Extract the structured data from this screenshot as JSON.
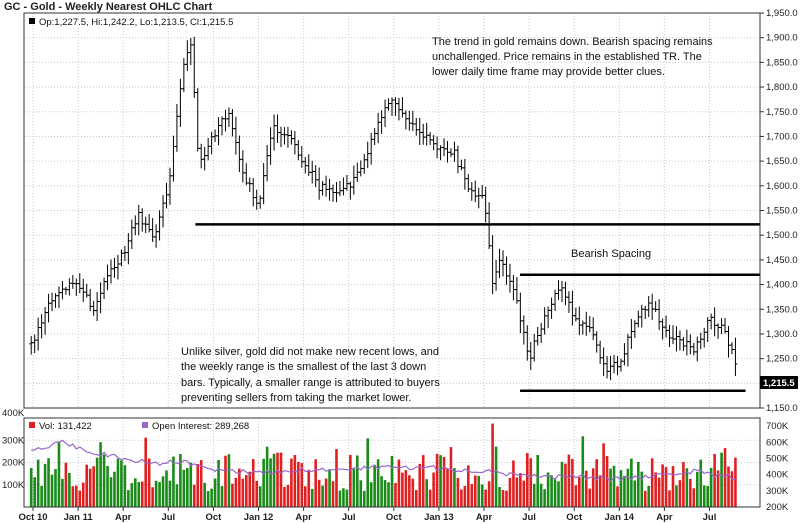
{
  "chart_data": {
    "type": "ohlc",
    "title": "GC - Gold - Weekly Nearest OHLC Chart",
    "price_panel": {
      "legend": "Op:1,227.5, Hi:1,242.2, Lo:1,213.5, Cl:1,215.5",
      "last_price_label": "1,215.5",
      "last_price": 1215.5,
      "ylim": [
        1150,
        1950
      ],
      "y_ticks": [
        1150,
        1200,
        1250,
        1300,
        1350,
        1400,
        1450,
        1500,
        1550,
        1600,
        1650,
        1700,
        1750,
        1800,
        1850,
        1900,
        1950
      ],
      "y_tick_labels": [
        "1,150.0",
        "1,200.0",
        "1,250.0",
        "1,300.0",
        "1,350.0",
        "1,400.0",
        "1,450.0",
        "1,500.0",
        "1,550.0",
        "1,600.0",
        "1,650.0",
        "1,700.0",
        "1,750.0",
        "1,800.0",
        "1,850.0",
        "1,900.0",
        "1,950.0"
      ],
      "price_path": [
        [
          2010.75,
          1280
        ],
        [
          2010.83,
          1355
        ],
        [
          2010.92,
          1390
        ],
        [
          2011.0,
          1400
        ],
        [
          2011.08,
          1350
        ],
        [
          2011.17,
          1420
        ],
        [
          2011.25,
          1460
        ],
        [
          2011.33,
          1540
        ],
        [
          2011.42,
          1500
        ],
        [
          2011.5,
          1590
        ],
        [
          2011.58,
          1840
        ],
        [
          2011.62,
          1900
        ],
        [
          2011.67,
          1650
        ],
        [
          2011.75,
          1700
        ],
        [
          2011.83,
          1750
        ],
        [
          2011.92,
          1620
        ],
        [
          2012.0,
          1560
        ],
        [
          2012.08,
          1720
        ],
        [
          2012.17,
          1700
        ],
        [
          2012.25,
          1650
        ],
        [
          2012.33,
          1600
        ],
        [
          2012.42,
          1580
        ],
        [
          2012.5,
          1600
        ],
        [
          2012.58,
          1640
        ],
        [
          2012.67,
          1740
        ],
        [
          2012.75,
          1780
        ],
        [
          2012.83,
          1730
        ],
        [
          2012.92,
          1700
        ],
        [
          2013.0,
          1670
        ],
        [
          2013.08,
          1670
        ],
        [
          2013.17,
          1590
        ],
        [
          2013.25,
          1570
        ],
        [
          2013.3,
          1400
        ],
        [
          2013.33,
          1460
        ],
        [
          2013.42,
          1380
        ],
        [
          2013.5,
          1250
        ],
        [
          2013.58,
          1330
        ],
        [
          2013.67,
          1400
        ],
        [
          2013.75,
          1330
        ],
        [
          2013.83,
          1320
        ],
        [
          2013.92,
          1230
        ],
        [
          2014.0,
          1240
        ],
        [
          2014.08,
          1320
        ],
        [
          2014.17,
          1370
        ],
        [
          2014.25,
          1300
        ],
        [
          2014.33,
          1290
        ],
        [
          2014.42,
          1270
        ],
        [
          2014.5,
          1330
        ],
        [
          2014.58,
          1310
        ],
        [
          2014.67,
          1215
        ]
      ],
      "support_level": 1522,
      "spacing_upper": 1420,
      "spacing_lower": 1185
    },
    "volume_panel": {
      "vol_legend": "Vol: 131,422",
      "oi_legend": "Open Interest: 289,268",
      "vol_last": 131422,
      "oi_last": 289268,
      "left_axis_label": "400K",
      "vol_ylim": [
        0,
        400000
      ],
      "vol_ticks": [
        100000,
        200000,
        300000
      ],
      "vol_tick_labels": [
        "100K",
        "200K",
        "300K"
      ],
      "oi_ylim": [
        200000,
        750000
      ],
      "oi_ticks": [
        200000,
        300000,
        400000,
        500000,
        600000,
        700000
      ],
      "oi_tick_labels": [
        "200K",
        "300K",
        "400K",
        "500K",
        "600K",
        "700K"
      ],
      "oi_path": [
        [
          2010.75,
          560000
        ],
        [
          2010.92,
          600000
        ],
        [
          2011.08,
          540000
        ],
        [
          2011.25,
          500000
        ],
        [
          2011.42,
          470000
        ],
        [
          2011.58,
          480000
        ],
        [
          2011.75,
          430000
        ],
        [
          2012.0,
          410000
        ],
        [
          2012.25,
          430000
        ],
        [
          2012.5,
          440000
        ],
        [
          2012.75,
          450000
        ],
        [
          2013.0,
          440000
        ],
        [
          2013.25,
          420000
        ],
        [
          2013.42,
          400000
        ],
        [
          2013.58,
          380000
        ],
        [
          2013.75,
          390000
        ],
        [
          2014.0,
          370000
        ],
        [
          2014.25,
          400000
        ],
        [
          2014.42,
          420000
        ],
        [
          2014.58,
          390000
        ],
        [
          2014.67,
          380000
        ]
      ]
    },
    "x_axis": {
      "xlim": [
        2010.7,
        2014.78
      ],
      "ticks": [
        {
          "label": "Oct 10",
          "x": 2010.75
        },
        {
          "label": "Jan 11",
          "x": 2011.0
        },
        {
          "label": "Apr",
          "x": 2011.25
        },
        {
          "label": "Jul",
          "x": 2011.5
        },
        {
          "label": "Oct",
          "x": 2011.75
        },
        {
          "label": "Jan 12",
          "x": 2012.0
        },
        {
          "label": "Apr",
          "x": 2012.25
        },
        {
          "label": "Jul",
          "x": 2012.5
        },
        {
          "label": "Oct",
          "x": 2012.75
        },
        {
          "label": "Jan 13",
          "x": 2013.0
        },
        {
          "label": "Apr",
          "x": 2013.25
        },
        {
          "label": "Jul",
          "x": 2013.5
        },
        {
          "label": "Oct",
          "x": 2013.75
        },
        {
          "label": "Jan 14",
          "x": 2014.0
        },
        {
          "label": "Apr",
          "x": 2014.25
        },
        {
          "label": "Jul",
          "x": 2014.5
        }
      ]
    },
    "annotations": {
      "top_note": [
        "The trend in gold remains down.  Bearish spacing remains",
        "unchallenged.  Price remains in the established TR.  The",
        "lower daily time frame may provide better clues."
      ],
      "spacing_label": "Bearish Spacing",
      "bottom_note": [
        "Unlike silver, gold did not make new recent lows, and",
        "the weekly range is the smallest of the last 3 down",
        "bars.  Typically, a smaller range is attributed to buyers",
        "preventing sellers from taking the market lower."
      ]
    },
    "grid": true,
    "colors": {
      "bars": "#000000",
      "vol_up": "#1a8a1a",
      "vol_down": "#e02020",
      "open_interest": "#9966cc",
      "grid": "#c8c8c8",
      "last_price_box": "#000000"
    }
  }
}
